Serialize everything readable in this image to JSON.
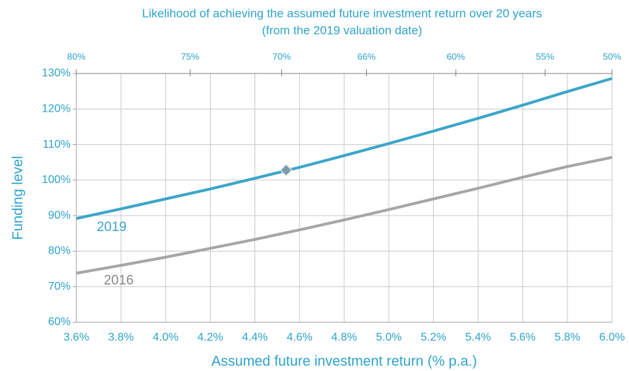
{
  "chart_data": {
    "type": "line",
    "title": "Likelihood of achieving the assumed future investment return over 20 years",
    "subtitle": "(from the 2019 valuation date)",
    "x_label": "Assumed future investment return (% p.a.)",
    "y_label": "Funding level",
    "x": [
      3.6,
      3.8,
      4.0,
      4.2,
      4.4,
      4.6,
      4.8,
      5.0,
      5.2,
      5.4,
      5.6,
      5.8,
      6.0
    ],
    "series": [
      {
        "name": "2019",
        "color": "#3ba6c9",
        "values": [
          89.2,
          91.9,
          94.7,
          97.5,
          100.5,
          103.6,
          106.9,
          110.3,
          113.8,
          117.4,
          121.1,
          124.9,
          128.6
        ]
      },
      {
        "name": "2016",
        "color": "#a6a6a6",
        "values": [
          73.8,
          76.0,
          78.3,
          80.8,
          83.3,
          86.0,
          88.8,
          91.7,
          94.7,
          97.7,
          100.8,
          103.8,
          106.4
        ]
      }
    ],
    "highlight": {
      "x": 4.54,
      "y": 102.8,
      "color": "#7f9aa8"
    },
    "xlim": [
      3.6,
      6.0
    ],
    "ylim": [
      60,
      130
    ],
    "xticks": [
      {
        "value": 3.6,
        "label": "3.6%"
      },
      {
        "value": 3.8,
        "label": "3.8%"
      },
      {
        "value": 4.0,
        "label": "4.0%"
      },
      {
        "value": 4.2,
        "label": "4.2%"
      },
      {
        "value": 4.4,
        "label": "4.4%"
      },
      {
        "value": 4.6,
        "label": "4.6%"
      },
      {
        "value": 4.8,
        "label": "4.8%"
      },
      {
        "value": 5.0,
        "label": "5.0%"
      },
      {
        "value": 5.2,
        "label": "5.2%"
      },
      {
        "value": 5.4,
        "label": "5.4%"
      },
      {
        "value": 5.6,
        "label": "5.6%"
      },
      {
        "value": 5.8,
        "label": "5.8%"
      },
      {
        "value": 6.0,
        "label": "6.0%"
      }
    ],
    "x2ticks": [
      {
        "value": 3.6,
        "label": "80%"
      },
      {
        "value": 4.11,
        "label": "75%"
      },
      {
        "value": 4.52,
        "label": "70%"
      },
      {
        "value": 4.9,
        "label": "66%"
      },
      {
        "value": 5.3,
        "label": "60%"
      },
      {
        "value": 5.7,
        "label": "55%"
      },
      {
        "value": 6.0,
        "label": "50%"
      }
    ],
    "yticks": [
      {
        "value": 60,
        "label": "60%"
      },
      {
        "value": 70,
        "label": "70%"
      },
      {
        "value": 80,
        "label": "80%"
      },
      {
        "value": 90,
        "label": "90%"
      },
      {
        "value": 100,
        "label": "100%"
      },
      {
        "value": 110,
        "label": "110%"
      },
      {
        "value": 120,
        "label": "120%"
      },
      {
        "value": 130,
        "label": "130%"
      }
    ],
    "grid": true
  }
}
